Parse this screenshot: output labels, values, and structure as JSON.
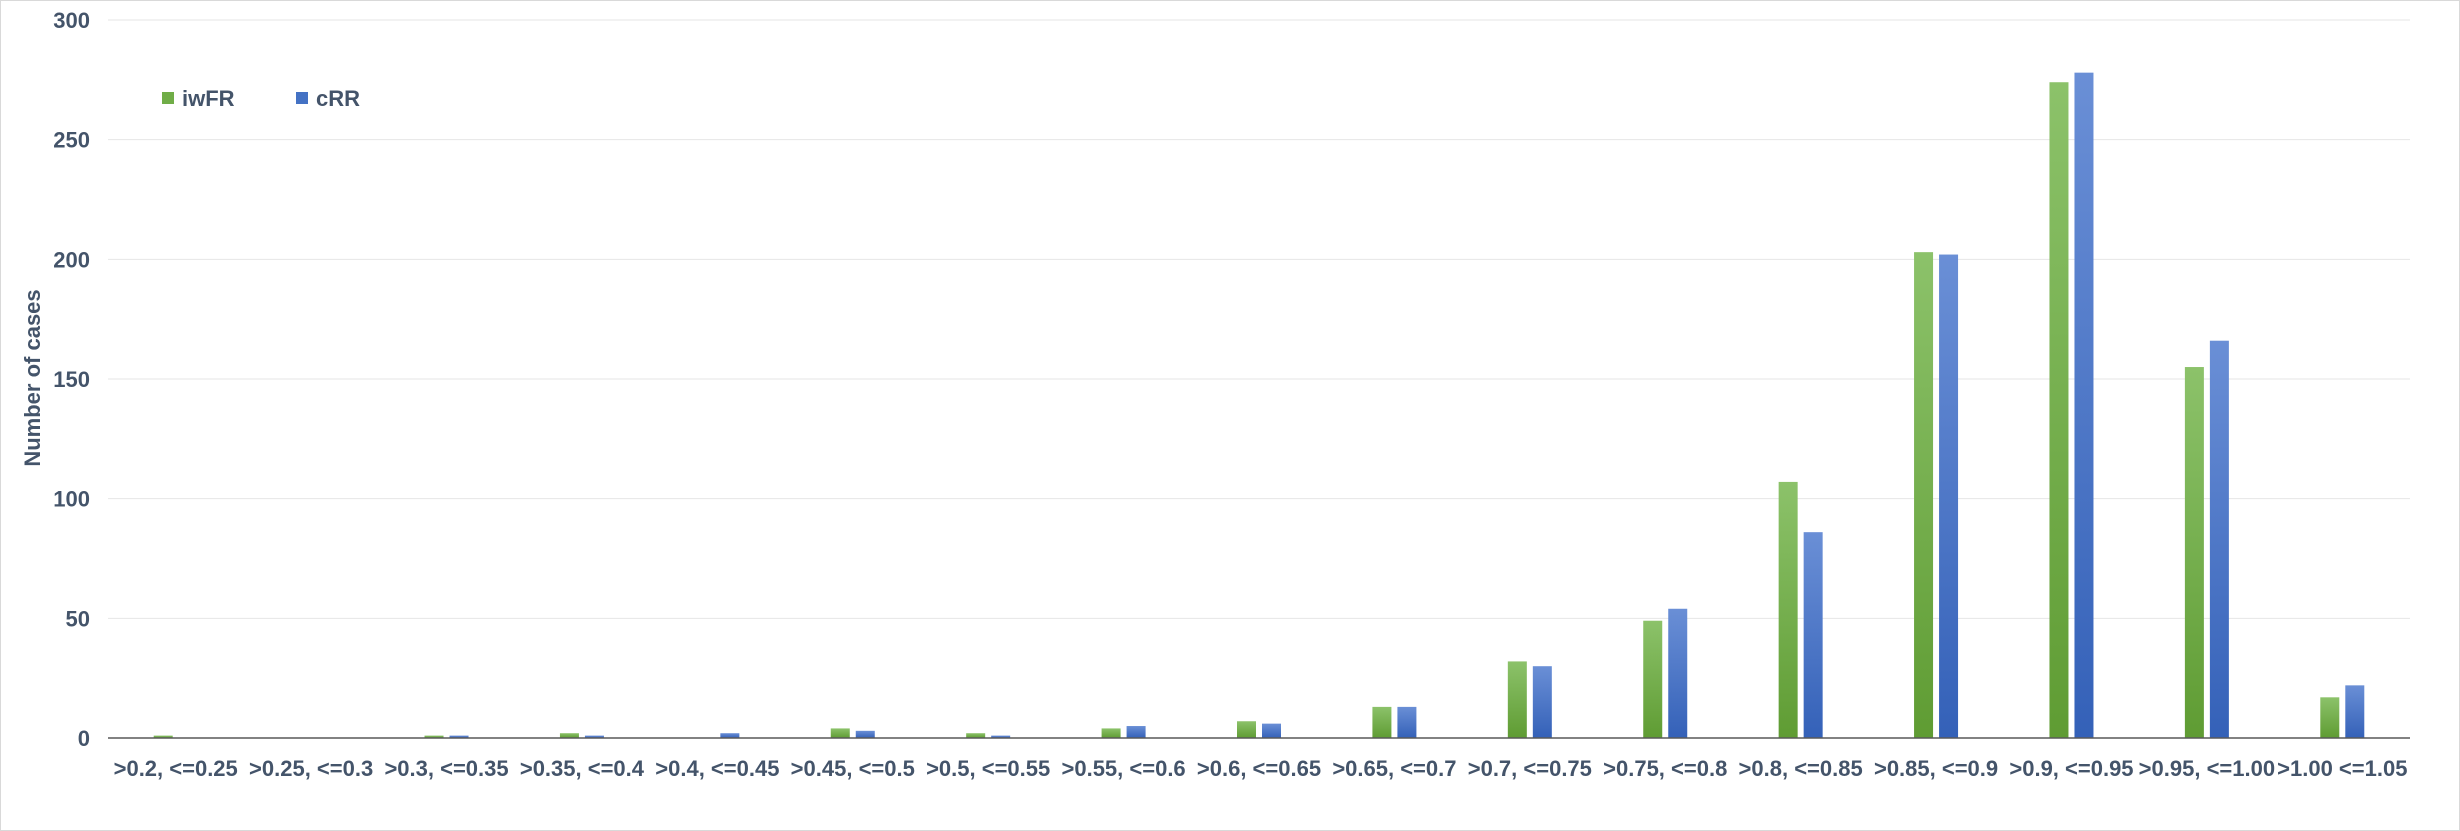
{
  "chart_data": {
    "type": "bar",
    "title": "",
    "xlabel": "",
    "ylabel": "Number of cases",
    "ylim": [
      0,
      300
    ],
    "yticks": [
      0,
      50,
      100,
      150,
      200,
      250,
      300
    ],
    "grid": true,
    "legend_position": "top-left",
    "categories": [
      ">0.2, <=0.25",
      ">0.25, <=0.3",
      ">0.3, <=0.35",
      ">0.35, <=0.4",
      ">0.4, <=0.45",
      ">0.45, <=0.5",
      ">0.5, <=0.55",
      ">0.55, <=0.6",
      ">0.6, <=0.65",
      ">0.65, <=0.7",
      ">0.7, <=0.75",
      ">0.75, <=0.8",
      ">0.8, <=0.85",
      ">0.85, <=0.9",
      ">0.9, <=0.95",
      ">0.95, <=1.00",
      ">1.00 <=1.05"
    ],
    "series": [
      {
        "name": "iwFR",
        "color": "#70ad47",
        "values": [
          1,
          0,
          1,
          2,
          0,
          4,
          2,
          4,
          7,
          13,
          32,
          49,
          107,
          203,
          274,
          155,
          17
        ]
      },
      {
        "name": "cRR",
        "color": "#4472c4",
        "values": [
          0,
          0,
          1,
          1,
          2,
          3,
          1,
          5,
          6,
          13,
          30,
          54,
          86,
          202,
          278,
          166,
          22
        ]
      }
    ]
  }
}
